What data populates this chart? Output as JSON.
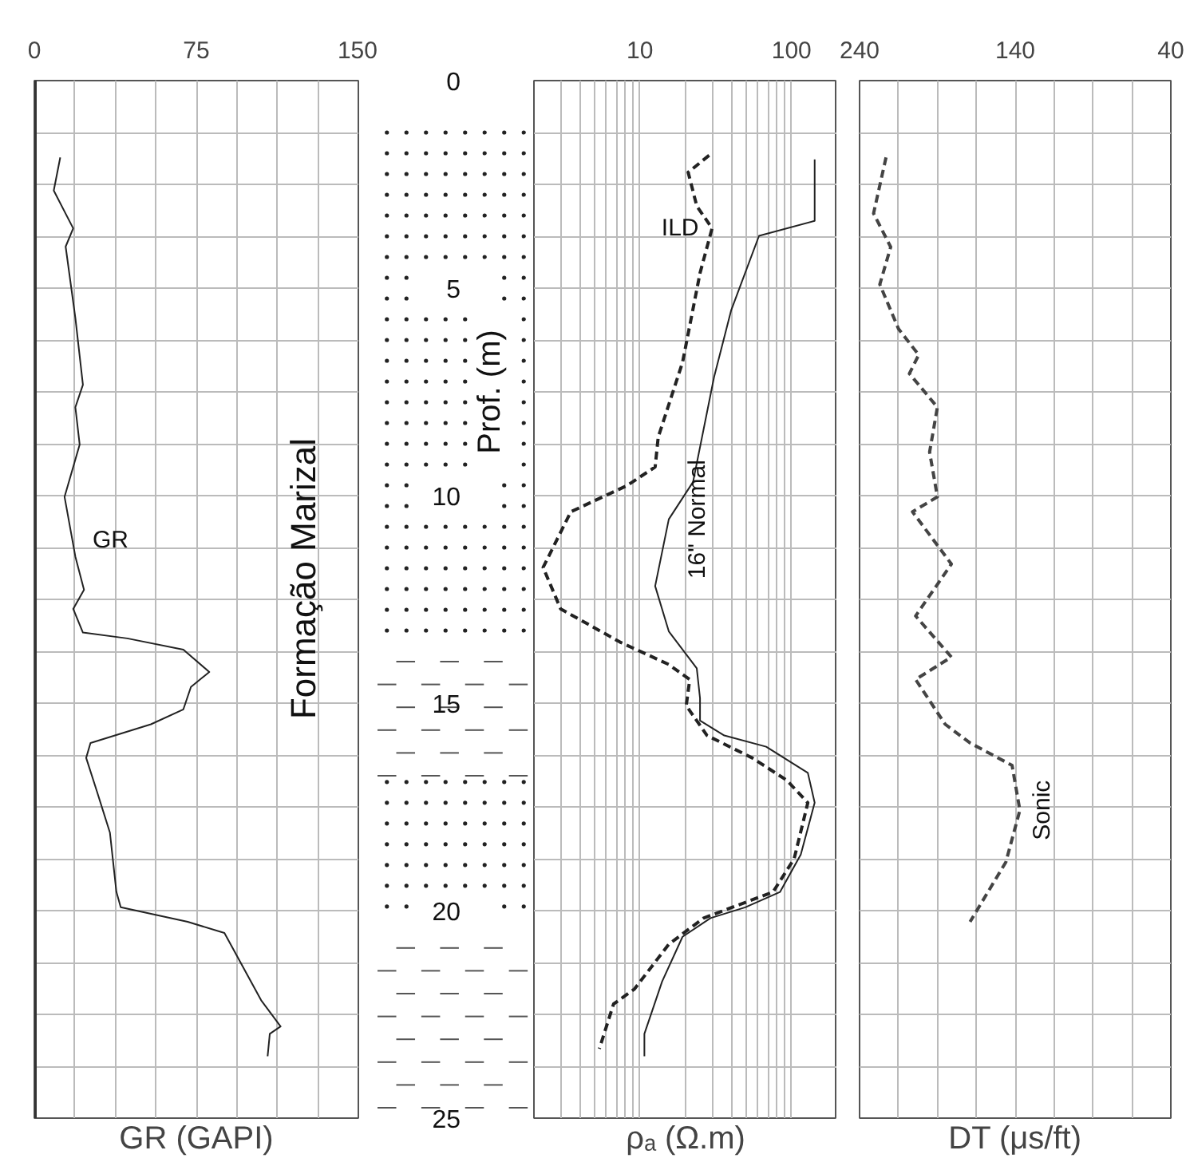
{
  "chart_data": [
    {
      "type": "line",
      "orientation": "horizontal",
      "xlabel": "GR (GAPI)",
      "xlim": [
        0,
        150
      ],
      "xticks": [
        0,
        {
          "value": 18.75,
          "label": null
        },
        {
          "value": 37.5,
          "label": null
        },
        {
          "value": 56.25,
          "label": null
        },
        75,
        {
          "value": 93.75,
          "label": null
        },
        {
          "value": 112.5,
          "label": null
        },
        {
          "value": 131.25,
          "label": null
        },
        150
      ],
      "ylim": [
        25,
        0
      ],
      "yticks": [
        {
          "value": 0,
          "label": null
        },
        {
          "value": 1.25,
          "label": null
        },
        {
          "value": 2.5,
          "label": null
        },
        {
          "value": 3.75,
          "label": null
        },
        {
          "value": 5,
          "label": null
        },
        {
          "value": 6.25,
          "label": null
        },
        {
          "value": 7.5,
          "label": null
        },
        {
          "value": 8.75,
          "label": null
        },
        {
          "value": 10,
          "label": null
        },
        {
          "value": 11.25,
          "label": null
        },
        {
          "value": 12.5,
          "label": null
        },
        {
          "value": 13.75,
          "label": null
        },
        {
          "value": 15,
          "label": null
        },
        {
          "value": 16.25,
          "label": null
        },
        {
          "value": 17.5,
          "label": null
        },
        {
          "value": 18.75,
          "label": null
        },
        {
          "value": 20,
          "label": null
        },
        {
          "value": 21.25,
          "label": null
        },
        {
          "value": 22.5,
          "label": null
        },
        {
          "value": 23.75,
          "label": null
        },
        {
          "value": 25,
          "label": null
        }
      ],
      "tick_labels": "x",
      "grid": true,
      "series": [
        {
          "name": "GR",
          "color": "#222222",
          "line_style": "solid",
          "x": [
            1.85,
            2.65,
            3.56,
            4.0,
            5.72,
            7.33,
            7.87,
            8.77,
            10.03,
            11.47,
            12.27,
            12.73,
            13.3,
            13.44,
            13.71,
            14.25,
            14.61,
            15.15,
            15.51,
            15.96,
            16.32,
            17.13,
            18.12,
            19.55,
            19.92,
            20.27,
            20.54,
            22.16,
            22.79,
            22.97,
            23.51
          ],
          "values": [
            12,
            9,
            18,
            14.5,
            19,
            22.5,
            19,
            21,
            14,
            19,
            23,
            18,
            22.5,
            43,
            69,
            81,
            72.5,
            69,
            54,
            26,
            24,
            29,
            35,
            38,
            40,
            71,
            88,
            105,
            114,
            109,
            108
          ]
        }
      ],
      "annotations": [
        "Formação Marizal"
      ]
    },
    {
      "type": "line",
      "orientation": "horizontal",
      "log": "x",
      "xlabel": "ρₐ (Ω.m)",
      "ylabel": "Prof. (m)",
      "xlim": [
        2,
        200
      ],
      "xticks": [
        {
          "value": 2,
          "label": null
        },
        {
          "value": 3,
          "label": null
        },
        {
          "value": 4,
          "label": null
        },
        {
          "value": 5,
          "label": null
        },
        {
          "value": 6,
          "label": null
        },
        {
          "value": 7,
          "label": null
        },
        {
          "value": 8,
          "label": null
        },
        {
          "value": 9,
          "label": null
        },
        10,
        {
          "value": 20,
          "label": null
        },
        {
          "value": 30,
          "label": null
        },
        {
          "value": 40,
          "label": null
        },
        {
          "value": 50,
          "label": null
        },
        {
          "value": 60,
          "label": null
        },
        {
          "value": 70,
          "label": null
        },
        {
          "value": 80,
          "label": null
        },
        {
          "value": 90,
          "label": null
        },
        100,
        {
          "value": 200,
          "label": null
        }
      ],
      "ylim": [
        25,
        0
      ],
      "yticks": [
        0,
        {
          "value": 1.25,
          "label": null
        },
        {
          "value": 2.5,
          "label": null
        },
        {
          "value": 3.75,
          "label": null
        },
        5,
        {
          "value": 6.25,
          "label": null
        },
        {
          "value": 7.5,
          "label": null
        },
        {
          "value": 8.75,
          "label": null
        },
        10,
        {
          "value": 11.25,
          "label": null
        },
        {
          "value": 12.5,
          "label": null
        },
        {
          "value": 13.75,
          "label": null
        },
        15,
        {
          "value": 16.25,
          "label": null
        },
        {
          "value": 17.5,
          "label": null
        },
        {
          "value": 18.75,
          "label": null
        },
        20,
        {
          "value": 21.25,
          "label": null
        },
        {
          "value": 22.5,
          "label": null
        },
        {
          "value": 23.75,
          "label": null
        },
        25
      ],
      "series": [
        {
          "name": "ILD",
          "color": "#222222",
          "line_style": "dashed",
          "x": [
            1.8,
            2.21,
            3.02,
            3.56,
            4.64,
            6.79,
            8.59,
            9.31,
            9.76,
            10.39,
            11.73,
            12.73,
            13.53,
            14.07,
            14.43,
            15.06,
            15.78,
            16.32,
            16.86,
            17.4,
            18.75,
            19.55,
            20.18,
            20.81,
            21.89,
            22.25,
            23.33
          ],
          "values": [
            28.6,
            20.8,
            23.7,
            29.9,
            24.9,
            19.1,
            13.2,
            12.6,
            8.2,
            3.5,
            2.3,
            3.0,
            7.4,
            15.5,
            21.3,
            20.2,
            27.7,
            55,
            93,
            128,
            104,
            75.5,
            26.3,
            15.5,
            9.2,
            6.7,
            5.4
          ]
        },
        {
          "name": "16\" Normal",
          "color": "#222222",
          "line_style": "solid",
          "x": [
            1.9,
            3.38,
            3.74,
            5.53,
            7.15,
            9.67,
            10.57,
            12.18,
            13.27,
            14.16,
            14.88,
            15.42,
            15.78,
            16.05,
            16.68,
            17.4,
            18.65,
            19.55,
            19.92,
            20.18,
            20.63,
            21.71,
            22.97,
            23.51
          ],
          "values": [
            142,
            142,
            61,
            40,
            30.8,
            22.4,
            15.5,
            12.6,
            15.5,
            23.7,
            24.9,
            24.9,
            36,
            68,
            128,
            142,
            115,
            84,
            49.5,
            29.2,
            19.1,
            14,
            10.7,
            10.7
          ]
        }
      ],
      "grid": true
    },
    {
      "type": "line",
      "orientation": "horizontal",
      "xlabel": "DT (μs/ft)",
      "xlim": [
        240,
        40
      ],
      "xticks": [
        240,
        {
          "value": 215,
          "label": null
        },
        {
          "value": 190,
          "label": null
        },
        {
          "value": 165,
          "label": null
        },
        140,
        {
          "value": 115,
          "label": null
        },
        {
          "value": 90,
          "label": null
        },
        {
          "value": 65,
          "label": null
        },
        40
      ],
      "ylim": [
        25,
        0
      ],
      "yticks": [
        {
          "value": 0,
          "label": null
        },
        {
          "value": 1.25,
          "label": null
        },
        {
          "value": 2.5,
          "label": null
        },
        {
          "value": 3.75,
          "label": null
        },
        {
          "value": 5,
          "label": null
        },
        {
          "value": 6.25,
          "label": null
        },
        {
          "value": 7.5,
          "label": null
        },
        {
          "value": 8.75,
          "label": null
        },
        {
          "value": 10,
          "label": null
        },
        {
          "value": 11.25,
          "label": null
        },
        {
          "value": 12.5,
          "label": null
        },
        {
          "value": 13.75,
          "label": null
        },
        {
          "value": 15,
          "label": null
        },
        {
          "value": 16.25,
          "label": null
        },
        {
          "value": 17.5,
          "label": null
        },
        {
          "value": 18.75,
          "label": null
        },
        {
          "value": 20,
          "label": null
        },
        {
          "value": 21.25,
          "label": null
        },
        {
          "value": 22.5,
          "label": null
        },
        {
          "value": 23.75,
          "label": null
        },
        {
          "value": 25,
          "label": null
        }
      ],
      "tick_labels": "x",
      "grid": true,
      "series": [
        {
          "name": "Sonic",
          "color": "#444444",
          "line_style": "dashed",
          "x": [
            1.85,
            3.2,
            4.01,
            4.91,
            5.98,
            6.61,
            7.06,
            7.87,
            8.95,
            10.03,
            10.39,
            11.65,
            12.9,
            13.89,
            14.43,
            15.51,
            15.96,
            16.5,
            17.58,
            18.83,
            20.27
          ],
          "values": [
            223,
            231,
            220,
            227,
            215,
            202,
            208,
            190,
            195,
            190,
            206,
            181,
            204,
            181,
            204,
            185,
            169,
            142,
            137,
            146,
            169
          ]
        }
      ]
    }
  ]
}
